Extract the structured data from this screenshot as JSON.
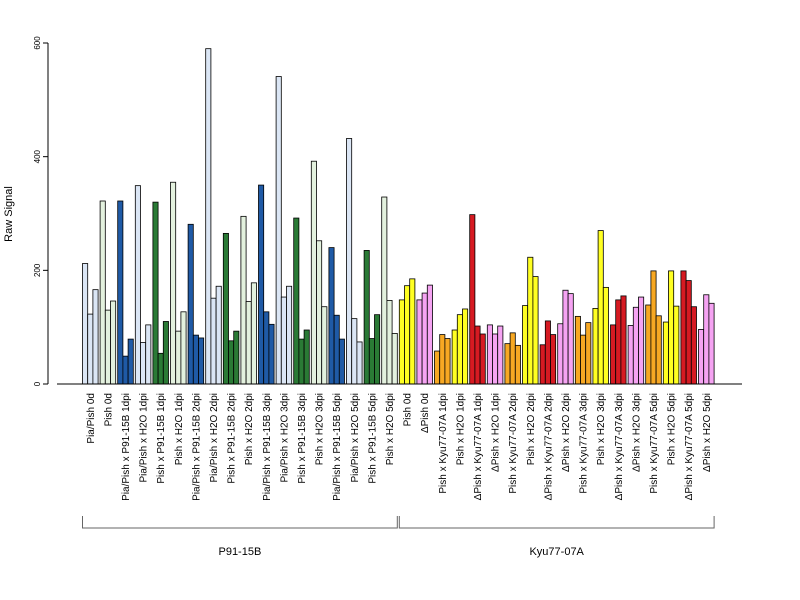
{
  "chart_data": {
    "type": "bar",
    "ylabel": "Raw Signal",
    "xlabel": "",
    "ylim": [
      0,
      620
    ],
    "yticks": [
      0,
      200,
      400,
      600
    ],
    "grid": false,
    "colors": {
      "light_blue": "#dbe6f5",
      "dark_blue": "#1f5aa6",
      "light_green": "#e3f1de",
      "dark_green": "#2a7a35",
      "yellow": "#ffff22",
      "pink": "#f5a3f2",
      "orange": "#f7a823",
      "red": "#d61a22"
    },
    "categories": [
      {
        "label": "Pia/Pish 0d",
        "color": "light_blue",
        "values": [
          212,
          123,
          166
        ]
      },
      {
        "label": "Pish 0d",
        "color": "light_green",
        "values": [
          322,
          130,
          146
        ]
      },
      {
        "label": "Pia/Pish x P91-15B 1dpi",
        "color": "dark_blue",
        "values": [
          322,
          49,
          79
        ]
      },
      {
        "label": "Pia/Pish x H2O 1dpi",
        "color": "light_blue",
        "values": [
          349,
          73,
          104
        ]
      },
      {
        "label": "Pish x P91-15B 1dpi",
        "color": "dark_green",
        "values": [
          320,
          54,
          110
        ]
      },
      {
        "label": "Pish x H2O 1dpi",
        "color": "light_green",
        "values": [
          355,
          93,
          127
        ]
      },
      {
        "label": "Pia/Pish x P91-15B 2dpi",
        "color": "dark_blue",
        "values": [
          281,
          86,
          81
        ]
      },
      {
        "label": "Pia/Pish x H2O 2dpi",
        "color": "light_blue",
        "values": [
          590,
          151,
          172
        ]
      },
      {
        "label": "Pish x P91-15B 2dpi",
        "color": "dark_green",
        "values": [
          265,
          76,
          93
        ]
      },
      {
        "label": "Pish x H2O 2dpi",
        "color": "light_green",
        "values": [
          295,
          145,
          178
        ]
      },
      {
        "label": "Pia/Pish x P91-15B 3dpi",
        "color": "dark_blue",
        "values": [
          350,
          127,
          105
        ]
      },
      {
        "label": "Pia/Pish x H2O 3dpi",
        "color": "light_blue",
        "values": [
          541,
          153,
          172
        ]
      },
      {
        "label": "Pish x P91-15B 3dpi",
        "color": "dark_green",
        "values": [
          292,
          79,
          95
        ]
      },
      {
        "label": "Pish x H2O 3dpi",
        "color": "light_green",
        "values": [
          392,
          252,
          136
        ]
      },
      {
        "label": "Pia/Pish x P91-15B 5dpi",
        "color": "dark_blue",
        "values": [
          240,
          121,
          79
        ]
      },
      {
        "label": "Pia/Pish x H2O 5dpi",
        "color": "light_blue",
        "values": [
          432,
          115,
          74
        ]
      },
      {
        "label": "Pish x P91-15B 5dpi",
        "color": "dark_green",
        "values": [
          235,
          80,
          122
        ]
      },
      {
        "label": "Pish x H2O 5dpi",
        "color": "light_green",
        "values": [
          329,
          147,
          89
        ]
      },
      {
        "label": "Pish 0d",
        "color": "yellow",
        "values": [
          148,
          173,
          185
        ]
      },
      {
        "label": "ΔPish 0d",
        "color": "pink",
        "values": [
          148,
          160,
          174
        ]
      },
      {
        "label": "Pish x Kyu77-07A 1dpi",
        "color": "orange",
        "values": [
          58,
          87,
          80
        ]
      },
      {
        "label": "Pish x H2O 1dpi",
        "color": "yellow",
        "values": [
          95,
          122,
          132
        ]
      },
      {
        "label": "ΔPish x Kyu77-07A 1dpi",
        "color": "red",
        "values": [
          298,
          102,
          88
        ]
      },
      {
        "label": "ΔPish x H2O 1dpi",
        "color": "pink",
        "values": [
          104,
          88,
          102
        ]
      },
      {
        "label": "Pish x Kyu77-07A 2dpi",
        "color": "orange",
        "values": [
          71,
          90,
          68
        ]
      },
      {
        "label": "Pish x H2O 2dpi",
        "color": "yellow",
        "values": [
          138,
          223,
          189
        ]
      },
      {
        "label": "ΔPish x Kyu77-07A 2dpi",
        "color": "red",
        "values": [
          69,
          111,
          87
        ]
      },
      {
        "label": "ΔPish x H2O 2dpi",
        "color": "pink",
        "values": [
          106,
          165,
          159
        ]
      },
      {
        "label": "Pish x Kyu77-07A 3dpi",
        "color": "orange",
        "values": [
          119,
          86,
          108
        ]
      },
      {
        "label": "Pish x H2O 3dpi",
        "color": "yellow",
        "values": [
          133,
          270,
          170
        ]
      },
      {
        "label": "ΔPish x Kyu77-07A 3dpi",
        "color": "red",
        "values": [
          104,
          148,
          155
        ]
      },
      {
        "label": "ΔPish x H2O 3dpi",
        "color": "pink",
        "values": [
          103,
          135,
          153
        ]
      },
      {
        "label": "Pish x Kyu77-07A 5dpi",
        "color": "orange",
        "values": [
          139,
          199,
          120
        ]
      },
      {
        "label": "Pish x H2O 5dpi",
        "color": "yellow",
        "values": [
          109,
          199,
          137
        ]
      },
      {
        "label": "ΔPish x Kyu77-07A 5dpi",
        "color": "red",
        "values": [
          199,
          182,
          136
        ]
      },
      {
        "label": "ΔPish x H2O 5dpi",
        "color": "pink",
        "values": [
          96,
          157,
          142
        ]
      }
    ],
    "groups": [
      {
        "label": "P91-15B",
        "from": 0,
        "to": 17
      },
      {
        "label": "Kyu77-07A",
        "from": 18,
        "to": 35
      }
    ]
  }
}
